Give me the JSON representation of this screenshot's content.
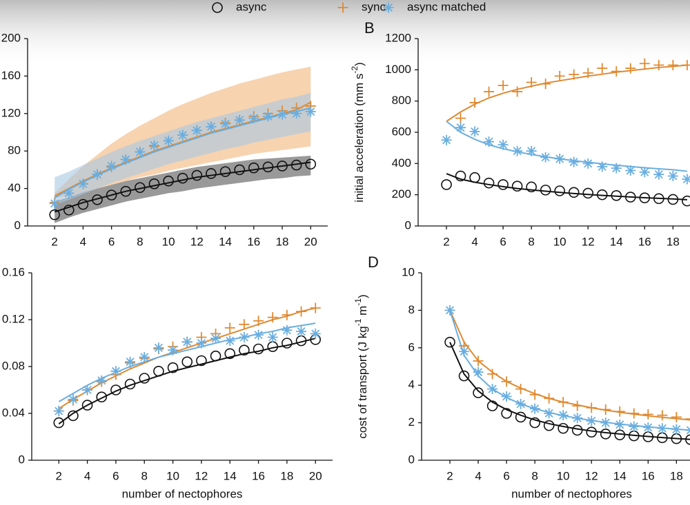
{
  "legend": [
    {
      "name": "async",
      "color": "#111111",
      "marker": "circle"
    },
    {
      "name": "sync",
      "color": "#e0892f",
      "marker": "plus"
    },
    {
      "name": "async matched",
      "color": "#6aaee0",
      "marker": "asterisk"
    }
  ],
  "band_colors": [
    "#555555",
    "#f2b57c",
    "#a9c8e2"
  ],
  "chart_data": [
    {
      "type": "scatter",
      "xlim": [
        0.1,
        21.2
      ],
      "ylim": [
        0,
        200
      ],
      "xticks": [
        2,
        4,
        6,
        8,
        10,
        12,
        14,
        16,
        18,
        20
      ],
      "yticks": [
        0,
        40,
        80,
        120,
        160,
        200
      ],
      "x": [
        2,
        3,
        4,
        5,
        6,
        7,
        8,
        9,
        10,
        11,
        12,
        13,
        14,
        15,
        16,
        17,
        18,
        19,
        20
      ],
      "series": [
        {
          "values": [
            12,
            17,
            23,
            28,
            33,
            37,
            41,
            45,
            48,
            51,
            54,
            56,
            58,
            60,
            62,
            63,
            64,
            65,
            66
          ],
          "fit": [
            15,
            20,
            25,
            29,
            33,
            37,
            40,
            43,
            46,
            49,
            52,
            54,
            56,
            58,
            60,
            62,
            64,
            66,
            68
          ],
          "band_lower": [
            3,
            9,
            14,
            18,
            22,
            26,
            29,
            32,
            35,
            37,
            40,
            42,
            44,
            46,
            48,
            50,
            51,
            53,
            54
          ],
          "band_upper": [
            26,
            31,
            36,
            40,
            44,
            48,
            51,
            54,
            57,
            60,
            63,
            65,
            67,
            69,
            71,
            72,
            73,
            74,
            75
          ]
        },
        {
          "values": [
            25,
            35,
            45,
            55,
            63,
            71,
            79,
            85,
            91,
            97,
            102,
            106,
            110,
            113,
            117,
            120,
            123,
            126,
            128
          ],
          "fit": [
            32,
            40,
            48,
            55,
            62,
            68,
            74,
            80,
            85,
            90,
            95,
            100,
            104,
            108,
            112,
            116,
            120,
            124,
            132
          ],
          "band_lower": [
            30,
            32,
            36,
            40,
            44,
            48,
            52,
            55,
            59,
            62,
            65,
            68,
            71,
            74,
            77,
            79,
            81,
            83,
            85
          ],
          "band_upper": [
            35,
            50,
            64,
            76,
            88,
            98,
            107,
            115,
            123,
            130,
            136,
            142,
            147,
            152,
            156,
            160,
            164,
            167,
            170
          ]
        },
        {
          "values": [
            24,
            35,
            45,
            55,
            64,
            71,
            79,
            86,
            91,
            97,
            102,
            106,
            109,
            113,
            115,
            117,
            119,
            120,
            122
          ],
          "fit": [
            30,
            39,
            47,
            54,
            61,
            67,
            73,
            79,
            84,
            89,
            94,
            99,
            103,
            107,
            111,
            115,
            119,
            122,
            126
          ],
          "band_lower": [
            22,
            28,
            34,
            40,
            46,
            51,
            56,
            61,
            66,
            70,
            74,
            78,
            82,
            85,
            89,
            92,
            95,
            98,
            101
          ],
          "band_upper": [
            52,
            58,
            65,
            72,
            79,
            85,
            91,
            96,
            101,
            106,
            111,
            115,
            119,
            123,
            127,
            131,
            135,
            138,
            142
          ]
        }
      ]
    },
    {
      "type": "scatter",
      "label": "B",
      "ylabel_parts": [
        "initial acceleration (mm s",
        "-2",
        ")"
      ],
      "xlim": [
        0,
        21.2
      ],
      "ylim": [
        0,
        1200
      ],
      "xticks": [
        2,
        4,
        6,
        8,
        10,
        12,
        14,
        16,
        18
      ],
      "yticks": [
        0,
        200,
        400,
        600,
        800,
        1000,
        1200
      ],
      "x": [
        2,
        3,
        4,
        5,
        6,
        7,
        8,
        9,
        10,
        11,
        12,
        13,
        14,
        15,
        16,
        17,
        18,
        19
      ],
      "series": [
        {
          "values": [
            265,
            320,
            310,
            275,
            265,
            255,
            250,
            230,
            225,
            215,
            210,
            200,
            195,
            185,
            180,
            175,
            170,
            160
          ],
          "fit": [
            335,
            300,
            280,
            265,
            252,
            240,
            231,
            223,
            215,
            208,
            202,
            196,
            191,
            186,
            181,
            177,
            173,
            168
          ]
        },
        {
          "values": [
            null,
            690,
            790,
            860,
            900,
            860,
            920,
            910,
            960,
            970,
            980,
            1010,
            990,
            1010,
            1040,
            1030,
            1030,
            1030
          ],
          "fit": [
            670,
            730,
            780,
            820,
            850,
            875,
            895,
            915,
            930,
            945,
            960,
            972,
            985,
            995,
            1005,
            1015,
            1022,
            1030
          ]
        },
        {
          "values": [
            550,
            630,
            605,
            540,
            520,
            480,
            480,
            440,
            430,
            410,
            400,
            380,
            370,
            355,
            345,
            330,
            320,
            300
          ],
          "fit": [
            670,
            600,
            555,
            520,
            495,
            475,
            458,
            443,
            430,
            418,
            408,
            398,
            389,
            381,
            373,
            366,
            360,
            350
          ]
        }
      ]
    },
    {
      "type": "scatter",
      "xlabel": "number of nectophores",
      "xlim": [
        0.1,
        21.2
      ],
      "ylim": [
        0,
        0.16
      ],
      "xticks": [
        2,
        4,
        6,
        8,
        10,
        12,
        14,
        16,
        18,
        20
      ],
      "yticks": [
        0,
        0.04,
        0.08,
        0.12,
        0.16
      ],
      "x": [
        2,
        3,
        4,
        5,
        6,
        7,
        8,
        9,
        10,
        11,
        12,
        13,
        14,
        15,
        16,
        17,
        18,
        19,
        20
      ],
      "series": [
        {
          "values": [
            0.032,
            0.038,
            0.047,
            0.054,
            0.06,
            0.065,
            0.07,
            0.076,
            0.079,
            0.084,
            0.085,
            0.089,
            0.091,
            0.094,
            0.095,
            0.097,
            0.1,
            0.102,
            0.103
          ],
          "fit": [
            0.031,
            0.04,
            0.047,
            0.053,
            0.059,
            0.064,
            0.068,
            0.072,
            0.076,
            0.079,
            0.082,
            0.085,
            0.088,
            0.091,
            0.093,
            0.096,
            0.098,
            0.101,
            0.104
          ]
        },
        {
          "values": [
            0.042,
            0.051,
            0.06,
            0.067,
            0.073,
            0.083,
            0.087,
            0.095,
            0.097,
            0.101,
            0.105,
            0.108,
            0.113,
            0.116,
            0.119,
            0.122,
            0.124,
            0.127,
            0.13
          ],
          "fit": [
            0.044,
            0.052,
            0.059,
            0.066,
            0.072,
            0.078,
            0.083,
            0.088,
            0.092,
            0.096,
            0.1,
            0.104,
            0.108,
            0.112,
            0.116,
            0.12,
            0.123,
            0.127,
            0.13
          ]
        },
        {
          "values": [
            0.042,
            0.052,
            0.06,
            0.068,
            0.076,
            0.084,
            0.088,
            0.096,
            0.094,
            0.101,
            0.1,
            0.104,
            0.102,
            0.105,
            0.107,
            0.105,
            0.111,
            0.11,
            0.108
          ],
          "fit": [
            0.05,
            0.057,
            0.064,
            0.07,
            0.075,
            0.08,
            0.084,
            0.088,
            0.091,
            0.094,
            0.097,
            0.1,
            0.103,
            0.105,
            0.108,
            0.11,
            0.113,
            0.115,
            0.117
          ]
        }
      ]
    },
    {
      "type": "scatter",
      "label": "D",
      "ylabel_parts": [
        "cost of transport (J kg",
        "-1",
        " m",
        "-1",
        ")"
      ],
      "xlabel": "number of nectophores",
      "xlim": [
        0,
        21.2
      ],
      "ylim": [
        0,
        10
      ],
      "xticks": [
        2,
        4,
        6,
        8,
        10,
        12,
        14,
        16,
        18
      ],
      "yticks": [
        0,
        2,
        4,
        6,
        8,
        10
      ],
      "x": [
        2,
        3,
        4,
        5,
        6,
        7,
        8,
        9,
        10,
        11,
        12,
        13,
        14,
        15,
        16,
        17,
        18,
        19
      ],
      "series": [
        {
          "values": [
            6.3,
            4.5,
            3.6,
            2.9,
            2.5,
            2.3,
            2.0,
            1.85,
            1.7,
            1.6,
            1.5,
            1.4,
            1.35,
            1.3,
            1.25,
            1.2,
            1.15,
            1.1
          ],
          "fit": [
            6.3,
            4.6,
            3.7,
            3.1,
            2.7,
            2.4,
            2.15,
            1.95,
            1.8,
            1.67,
            1.56,
            1.47,
            1.4,
            1.33,
            1.27,
            1.21,
            1.16,
            1.11
          ]
        },
        {
          "values": [
            null,
            6.1,
            5.3,
            4.6,
            4.2,
            3.8,
            3.5,
            3.3,
            3.1,
            2.9,
            2.8,
            2.7,
            2.6,
            2.5,
            2.45,
            2.4,
            2.3,
            2.2
          ],
          "fit": [
            8.0,
            6.3,
            5.3,
            4.7,
            4.2,
            3.85,
            3.55,
            3.3,
            3.1,
            2.95,
            2.8,
            2.67,
            2.56,
            2.46,
            2.37,
            2.29,
            2.22,
            2.15
          ]
        },
        {
          "values": [
            8.0,
            5.8,
            4.7,
            3.8,
            3.4,
            3.0,
            2.75,
            2.5,
            2.4,
            2.25,
            2.1,
            2.0,
            1.9,
            1.8,
            1.75,
            1.7,
            1.65,
            1.6
          ],
          "fit": [
            8.0,
            5.6,
            4.5,
            3.8,
            3.35,
            3.0,
            2.75,
            2.55,
            2.38,
            2.24,
            2.12,
            2.02,
            1.93,
            1.85,
            1.78,
            1.72,
            1.66,
            1.6
          ]
        }
      ]
    }
  ]
}
